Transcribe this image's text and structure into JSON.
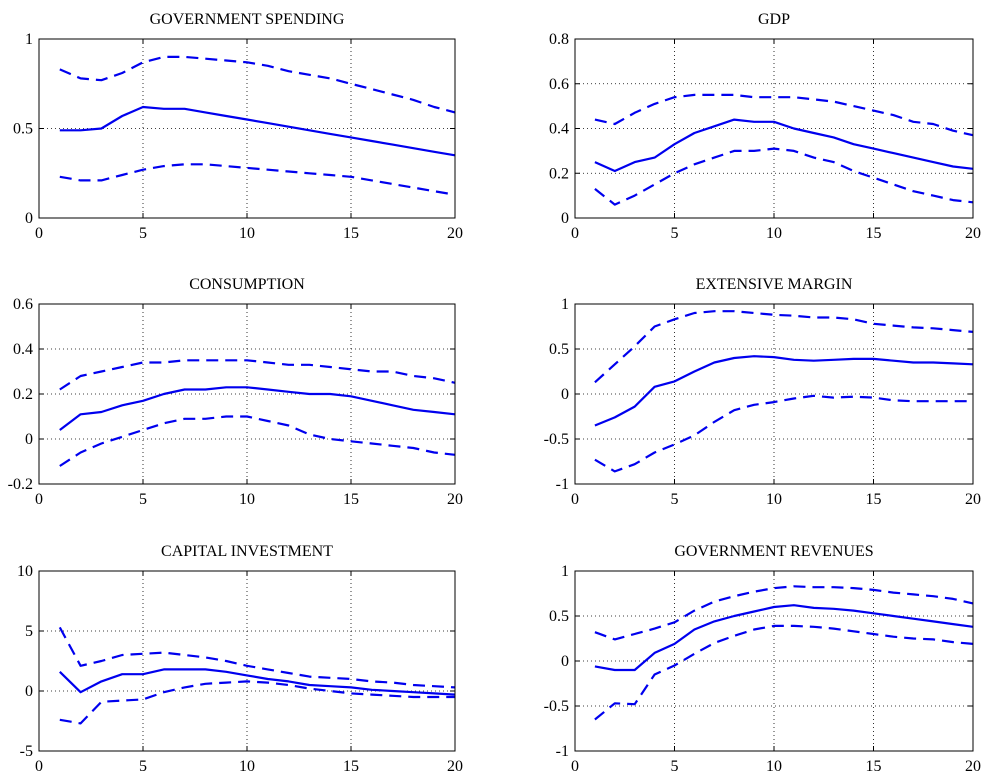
{
  "colors": {
    "line": "#0000ee",
    "axis": "#000000",
    "grid": "#000000",
    "background": "#ffffff"
  },
  "chart_data": [
    {
      "type": "line",
      "title": "GOVERNMENT SPENDING",
      "xlim": [
        0,
        20
      ],
      "ylim": [
        0,
        1
      ],
      "xticks": [
        0,
        5,
        10,
        15,
        20
      ],
      "xtick_labels": [
        "0",
        "5",
        "10",
        "15",
        "20"
      ],
      "yticks": [
        0,
        0.5,
        1
      ],
      "ytick_labels": [
        "0",
        "0.5",
        "1"
      ],
      "grid": true,
      "x": [
        1,
        2,
        3,
        4,
        5,
        6,
        7,
        8,
        9,
        10,
        11,
        12,
        13,
        14,
        15,
        16,
        17,
        18,
        19,
        20
      ],
      "series": [
        {
          "style": "solid",
          "values": [
            0.49,
            0.49,
            0.5,
            0.57,
            0.62,
            0.61,
            0.61,
            0.59,
            0.57,
            0.55,
            0.53,
            0.51,
            0.49,
            0.47,
            0.45,
            0.43,
            0.41,
            0.39,
            0.37,
            0.35
          ]
        },
        {
          "style": "dashed",
          "values": [
            0.83,
            0.78,
            0.77,
            0.81,
            0.87,
            0.9,
            0.9,
            0.89,
            0.88,
            0.87,
            0.85,
            0.82,
            0.8,
            0.78,
            0.75,
            0.72,
            0.69,
            0.66,
            0.62,
            0.59
          ]
        },
        {
          "style": "dashed",
          "values": [
            0.23,
            0.21,
            0.21,
            0.24,
            0.27,
            0.29,
            0.3,
            0.3,
            0.29,
            0.28,
            0.27,
            0.26,
            0.25,
            0.24,
            0.23,
            0.21,
            0.19,
            0.17,
            0.15,
            0.13
          ]
        }
      ]
    },
    {
      "type": "line",
      "title": "GDP",
      "xlim": [
        0,
        20
      ],
      "ylim": [
        0,
        0.8
      ],
      "xticks": [
        0,
        5,
        10,
        15,
        20
      ],
      "xtick_labels": [
        "0",
        "5",
        "10",
        "15",
        "20"
      ],
      "yticks": [
        0,
        0.2,
        0.4,
        0.6,
        0.8
      ],
      "ytick_labels": [
        "0",
        "0.2",
        "0.4",
        "0.6",
        "0.8"
      ],
      "grid": true,
      "x": [
        1,
        2,
        3,
        4,
        5,
        6,
        7,
        8,
        9,
        10,
        11,
        12,
        13,
        14,
        15,
        16,
        17,
        18,
        19,
        20
      ],
      "series": [
        {
          "style": "solid",
          "values": [
            0.25,
            0.21,
            0.25,
            0.27,
            0.33,
            0.38,
            0.41,
            0.44,
            0.43,
            0.43,
            0.4,
            0.38,
            0.36,
            0.33,
            0.31,
            0.29,
            0.27,
            0.25,
            0.23,
            0.22
          ]
        },
        {
          "style": "dashed",
          "values": [
            0.44,
            0.42,
            0.47,
            0.51,
            0.54,
            0.55,
            0.55,
            0.55,
            0.54,
            0.54,
            0.54,
            0.53,
            0.52,
            0.5,
            0.48,
            0.46,
            0.43,
            0.42,
            0.39,
            0.37
          ]
        },
        {
          "style": "dashed",
          "values": [
            0.13,
            0.06,
            0.1,
            0.15,
            0.2,
            0.24,
            0.27,
            0.3,
            0.3,
            0.31,
            0.3,
            0.27,
            0.25,
            0.21,
            0.18,
            0.15,
            0.12,
            0.1,
            0.08,
            0.07
          ]
        }
      ]
    },
    {
      "type": "line",
      "title": "CONSUMPTION",
      "xlim": [
        0,
        20
      ],
      "ylim": [
        -0.2,
        0.6
      ],
      "xticks": [
        0,
        5,
        10,
        15,
        20
      ],
      "xtick_labels": [
        "0",
        "5",
        "10",
        "15",
        "20"
      ],
      "yticks": [
        -0.2,
        0,
        0.2,
        0.4,
        0.6
      ],
      "ytick_labels": [
        "-0.2",
        "0",
        "0.2",
        "0.4",
        "0.6"
      ],
      "grid": true,
      "x": [
        1,
        2,
        3,
        4,
        5,
        6,
        7,
        8,
        9,
        10,
        11,
        12,
        13,
        14,
        15,
        16,
        17,
        18,
        19,
        20
      ],
      "series": [
        {
          "style": "solid",
          "values": [
            0.04,
            0.11,
            0.12,
            0.15,
            0.17,
            0.2,
            0.22,
            0.22,
            0.23,
            0.23,
            0.22,
            0.21,
            0.2,
            0.2,
            0.19,
            0.17,
            0.15,
            0.13,
            0.12,
            0.11
          ]
        },
        {
          "style": "dashed",
          "values": [
            0.22,
            0.28,
            0.3,
            0.32,
            0.34,
            0.34,
            0.35,
            0.35,
            0.35,
            0.35,
            0.34,
            0.33,
            0.33,
            0.32,
            0.31,
            0.3,
            0.3,
            0.28,
            0.27,
            0.25
          ]
        },
        {
          "style": "dashed",
          "values": [
            -0.12,
            -0.06,
            -0.02,
            0.01,
            0.04,
            0.07,
            0.09,
            0.09,
            0.1,
            0.1,
            0.08,
            0.06,
            0.02,
            0.0,
            -0.01,
            -0.02,
            -0.03,
            -0.04,
            -0.06,
            -0.07
          ]
        }
      ]
    },
    {
      "type": "line",
      "title": "EXTENSIVE MARGIN",
      "xlim": [
        0,
        20
      ],
      "ylim": [
        -1,
        1
      ],
      "xticks": [
        0,
        5,
        10,
        15,
        20
      ],
      "xtick_labels": [
        "0",
        "5",
        "10",
        "15",
        "20"
      ],
      "yticks": [
        -1,
        -0.5,
        0,
        0.5,
        1
      ],
      "ytick_labels": [
        "-1",
        "-0.5",
        "0",
        "0.5",
        "1"
      ],
      "grid": true,
      "x": [
        1,
        2,
        3,
        4,
        5,
        6,
        7,
        8,
        9,
        10,
        11,
        12,
        13,
        14,
        15,
        16,
        17,
        18,
        19,
        20
      ],
      "series": [
        {
          "style": "solid",
          "values": [
            -0.35,
            -0.26,
            -0.14,
            0.08,
            0.14,
            0.25,
            0.35,
            0.4,
            0.42,
            0.41,
            0.38,
            0.37,
            0.38,
            0.39,
            0.39,
            0.37,
            0.35,
            0.35,
            0.34,
            0.33
          ]
        },
        {
          "style": "dashed",
          "values": [
            0.13,
            0.33,
            0.53,
            0.75,
            0.83,
            0.9,
            0.92,
            0.92,
            0.9,
            0.88,
            0.87,
            0.85,
            0.85,
            0.83,
            0.78,
            0.76,
            0.74,
            0.73,
            0.71,
            0.69
          ]
        },
        {
          "style": "dashed",
          "values": [
            -0.73,
            -0.86,
            -0.78,
            -0.65,
            -0.56,
            -0.46,
            -0.31,
            -0.18,
            -0.12,
            -0.09,
            -0.05,
            -0.02,
            -0.04,
            -0.03,
            -0.04,
            -0.07,
            -0.08,
            -0.08,
            -0.08,
            -0.08
          ]
        }
      ]
    },
    {
      "type": "line",
      "title": "CAPITAL INVESTMENT",
      "xlim": [
        0,
        20
      ],
      "ylim": [
        -5,
        10
      ],
      "xticks": [
        0,
        5,
        10,
        15,
        20
      ],
      "xtick_labels": [
        "0",
        "5",
        "10",
        "15",
        "20"
      ],
      "yticks": [
        -5,
        0,
        5,
        10
      ],
      "ytick_labels": [
        "-5",
        "0",
        "5",
        "10"
      ],
      "grid": true,
      "x": [
        1,
        2,
        3,
        4,
        5,
        6,
        7,
        8,
        9,
        10,
        11,
        12,
        13,
        14,
        15,
        16,
        17,
        18,
        19,
        20
      ],
      "series": [
        {
          "style": "solid",
          "values": [
            1.6,
            -0.1,
            0.8,
            1.4,
            1.4,
            1.8,
            1.8,
            1.8,
            1.6,
            1.3,
            1.0,
            0.8,
            0.5,
            0.4,
            0.3,
            0.1,
            0.0,
            -0.1,
            -0.2,
            -0.3
          ]
        },
        {
          "style": "dashed",
          "values": [
            5.3,
            2.1,
            2.5,
            3.0,
            3.1,
            3.2,
            3.0,
            2.8,
            2.5,
            2.1,
            1.8,
            1.5,
            1.2,
            1.1,
            1.0,
            0.8,
            0.7,
            0.5,
            0.4,
            0.3
          ]
        },
        {
          "style": "dashed",
          "values": [
            -2.4,
            -2.7,
            -0.9,
            -0.8,
            -0.7,
            -0.1,
            0.3,
            0.6,
            0.7,
            0.8,
            0.7,
            0.5,
            0.2,
            0.0,
            -0.2,
            -0.3,
            -0.4,
            -0.5,
            -0.5,
            -0.5
          ]
        }
      ]
    },
    {
      "type": "line",
      "title": "GOVERNMENT REVENUES",
      "xlim": [
        0,
        20
      ],
      "ylim": [
        -1,
        1
      ],
      "xticks": [
        0,
        5,
        10,
        15,
        20
      ],
      "xtick_labels": [
        "0",
        "5",
        "10",
        "15",
        "20"
      ],
      "yticks": [
        -1,
        -0.5,
        0,
        0.5,
        1
      ],
      "ytick_labels": [
        "-1",
        "-0.5",
        "0",
        "0.5",
        "1"
      ],
      "grid": true,
      "x": [
        1,
        2,
        3,
        4,
        5,
        6,
        7,
        8,
        9,
        10,
        11,
        12,
        13,
        14,
        15,
        16,
        17,
        18,
        19,
        20
      ],
      "series": [
        {
          "style": "solid",
          "values": [
            -0.06,
            -0.1,
            -0.1,
            0.09,
            0.19,
            0.35,
            0.44,
            0.5,
            0.55,
            0.6,
            0.62,
            0.59,
            0.58,
            0.56,
            0.53,
            0.5,
            0.47,
            0.44,
            0.41,
            0.38
          ]
        },
        {
          "style": "dashed",
          "values": [
            0.32,
            0.24,
            0.3,
            0.36,
            0.43,
            0.56,
            0.66,
            0.72,
            0.77,
            0.81,
            0.83,
            0.82,
            0.82,
            0.81,
            0.79,
            0.76,
            0.74,
            0.72,
            0.69,
            0.64
          ]
        },
        {
          "style": "dashed",
          "values": [
            -0.65,
            -0.47,
            -0.48,
            -0.15,
            -0.05,
            0.08,
            0.2,
            0.28,
            0.35,
            0.39,
            0.39,
            0.38,
            0.36,
            0.33,
            0.3,
            0.27,
            0.25,
            0.24,
            0.21,
            0.19
          ]
        }
      ]
    }
  ]
}
